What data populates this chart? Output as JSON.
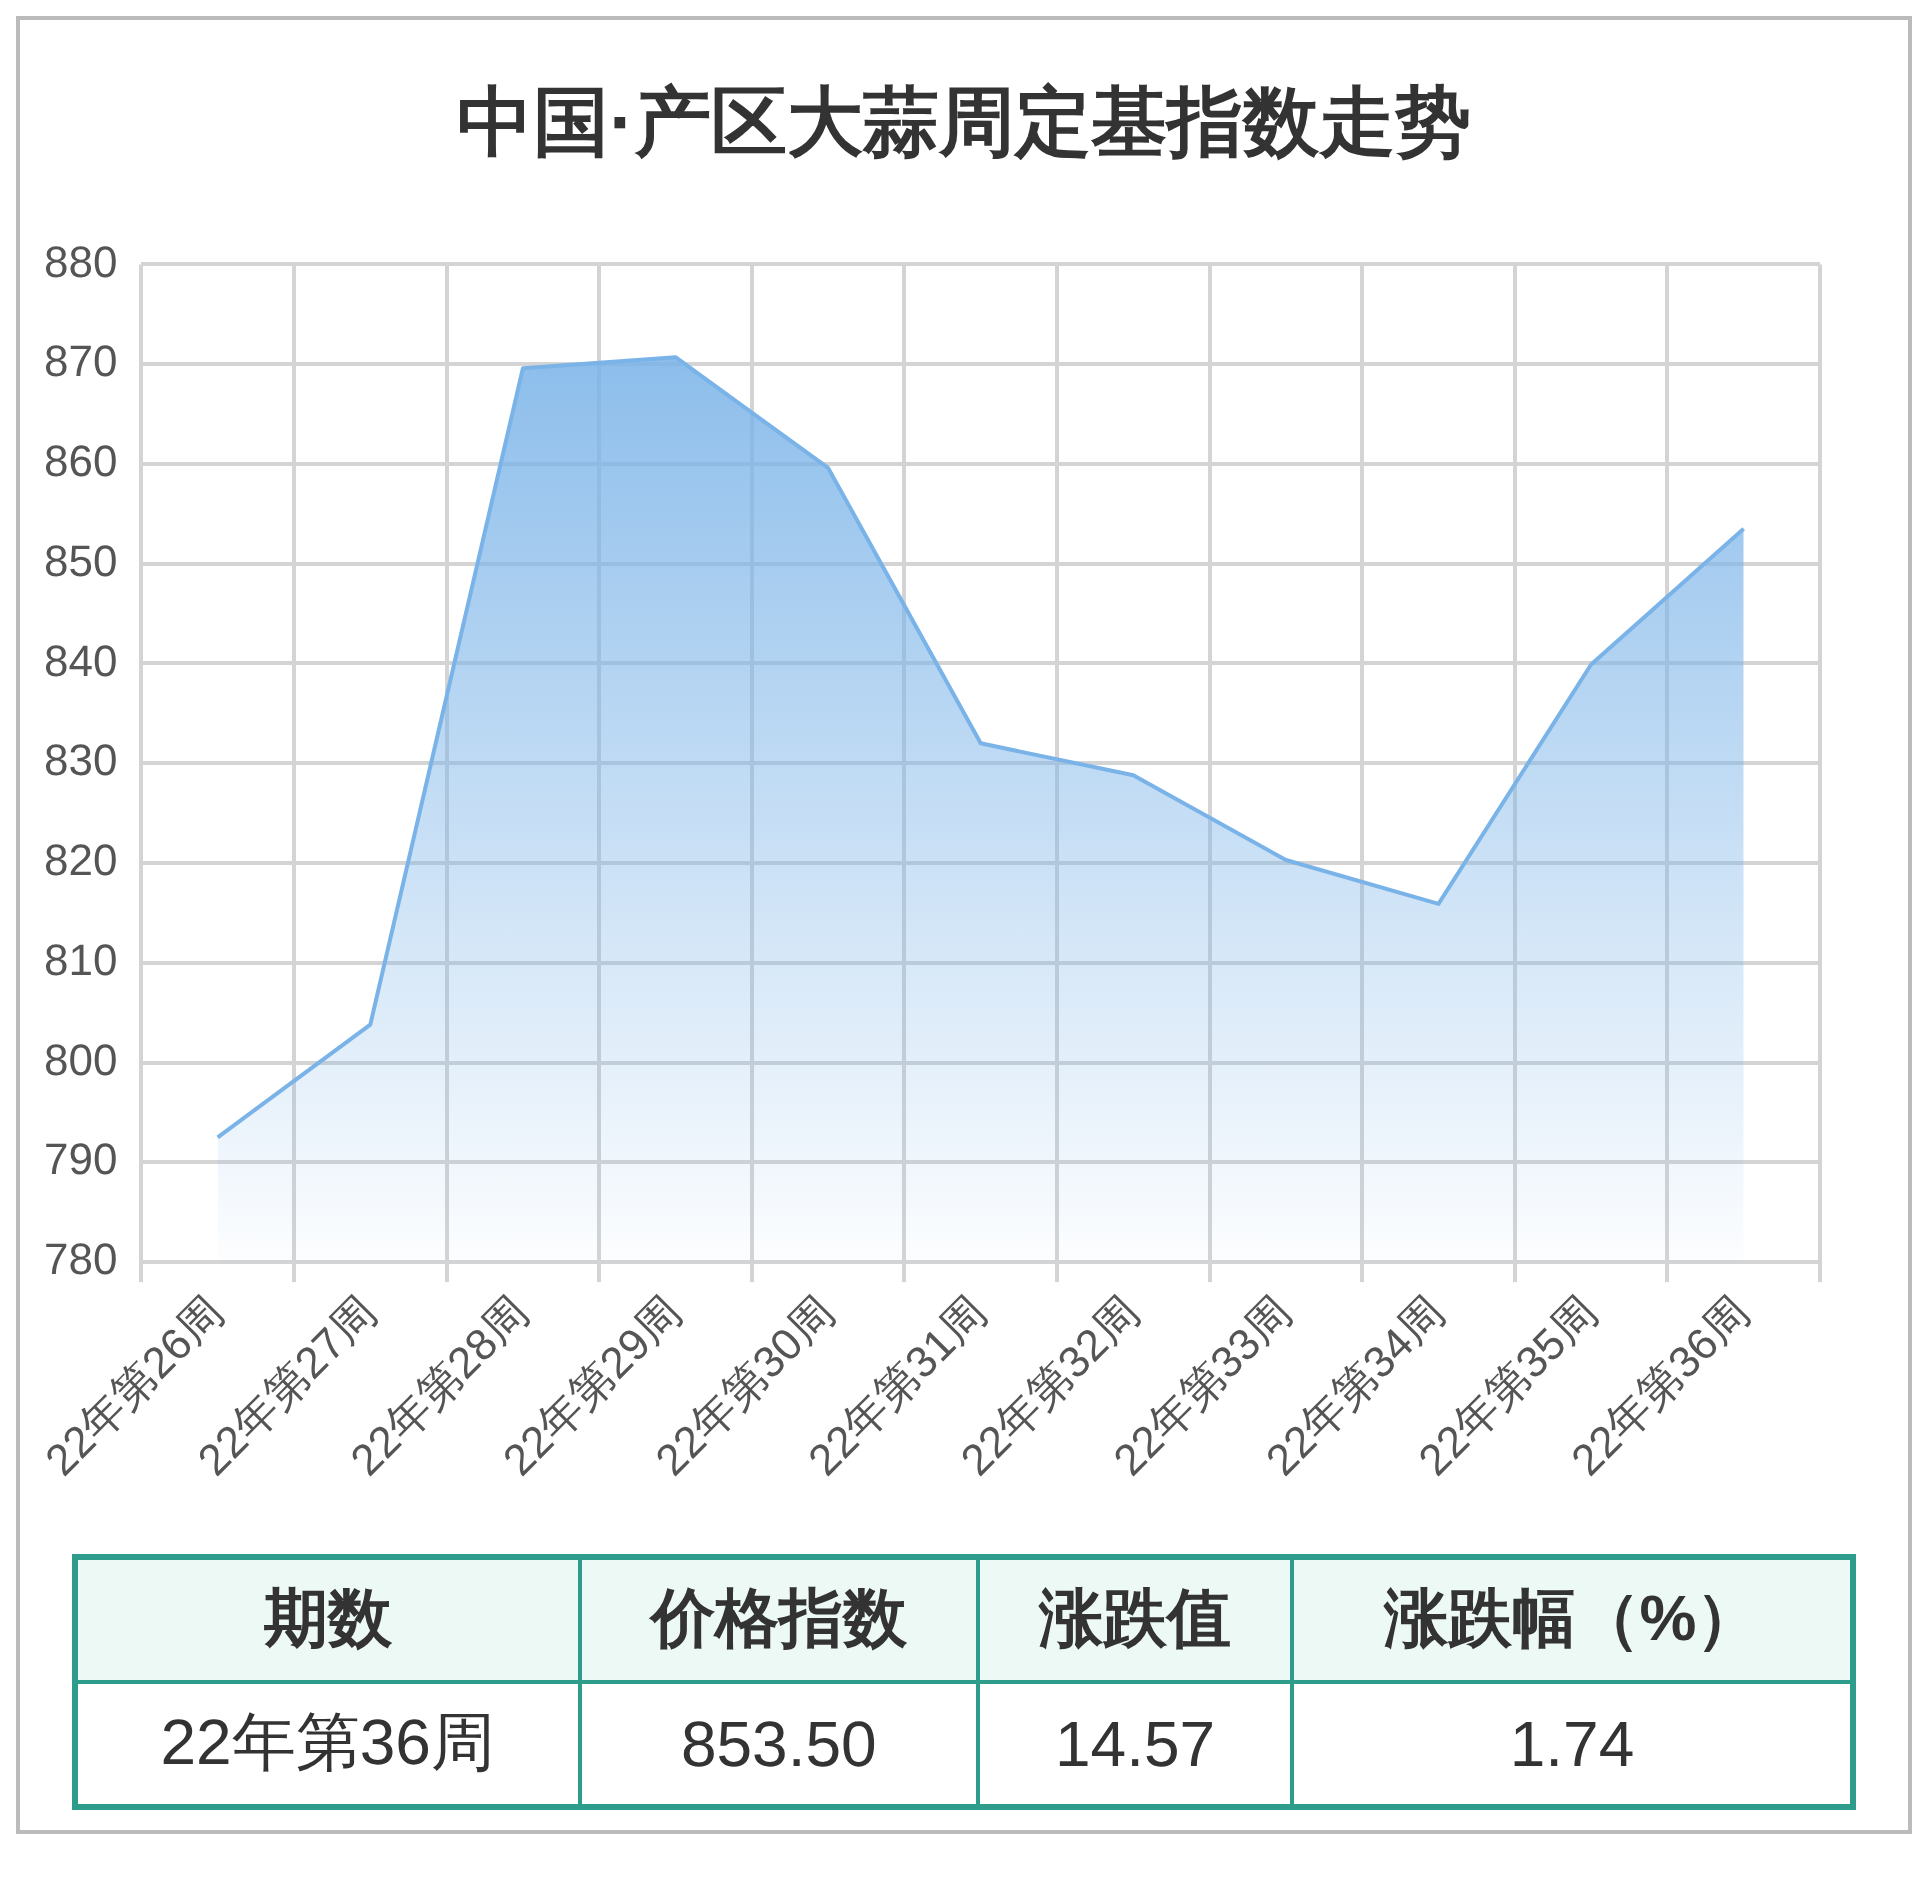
{
  "chart_data": [
    {
      "type": "area",
      "title": "中国·产区大蒜周定基指数走势",
      "categories": [
        "22年第26周",
        "22年第27周",
        "22年第28周",
        "22年第29周",
        "22年第30周",
        "22年第31周",
        "22年第32周",
        "22年第33周",
        "22年第34周",
        "22年第35周",
        "22年第36周"
      ],
      "series": [
        {
          "color": "#7ab3e8",
          "values": [
            792.5,
            803.8,
            869.6,
            870.7,
            859.6,
            832.0,
            828.8,
            820.3,
            815.9,
            839.9,
            853.5
          ]
        }
      ],
      "ylim": [
        780,
        880
      ],
      "yticks": [
        780,
        790,
        800,
        810,
        820,
        830,
        840,
        850,
        860,
        870,
        880
      ],
      "grid": true,
      "legend": false,
      "marker": "none"
    },
    {
      "type": "other",
      "categories": [
        "期数",
        "价格指数",
        "涨跌值",
        "涨跌幅（%）"
      ],
      "cell_labels": [
        [
          "22年第36周",
          "853.50",
          "14.57",
          "1.74"
        ]
      ]
    }
  ]
}
